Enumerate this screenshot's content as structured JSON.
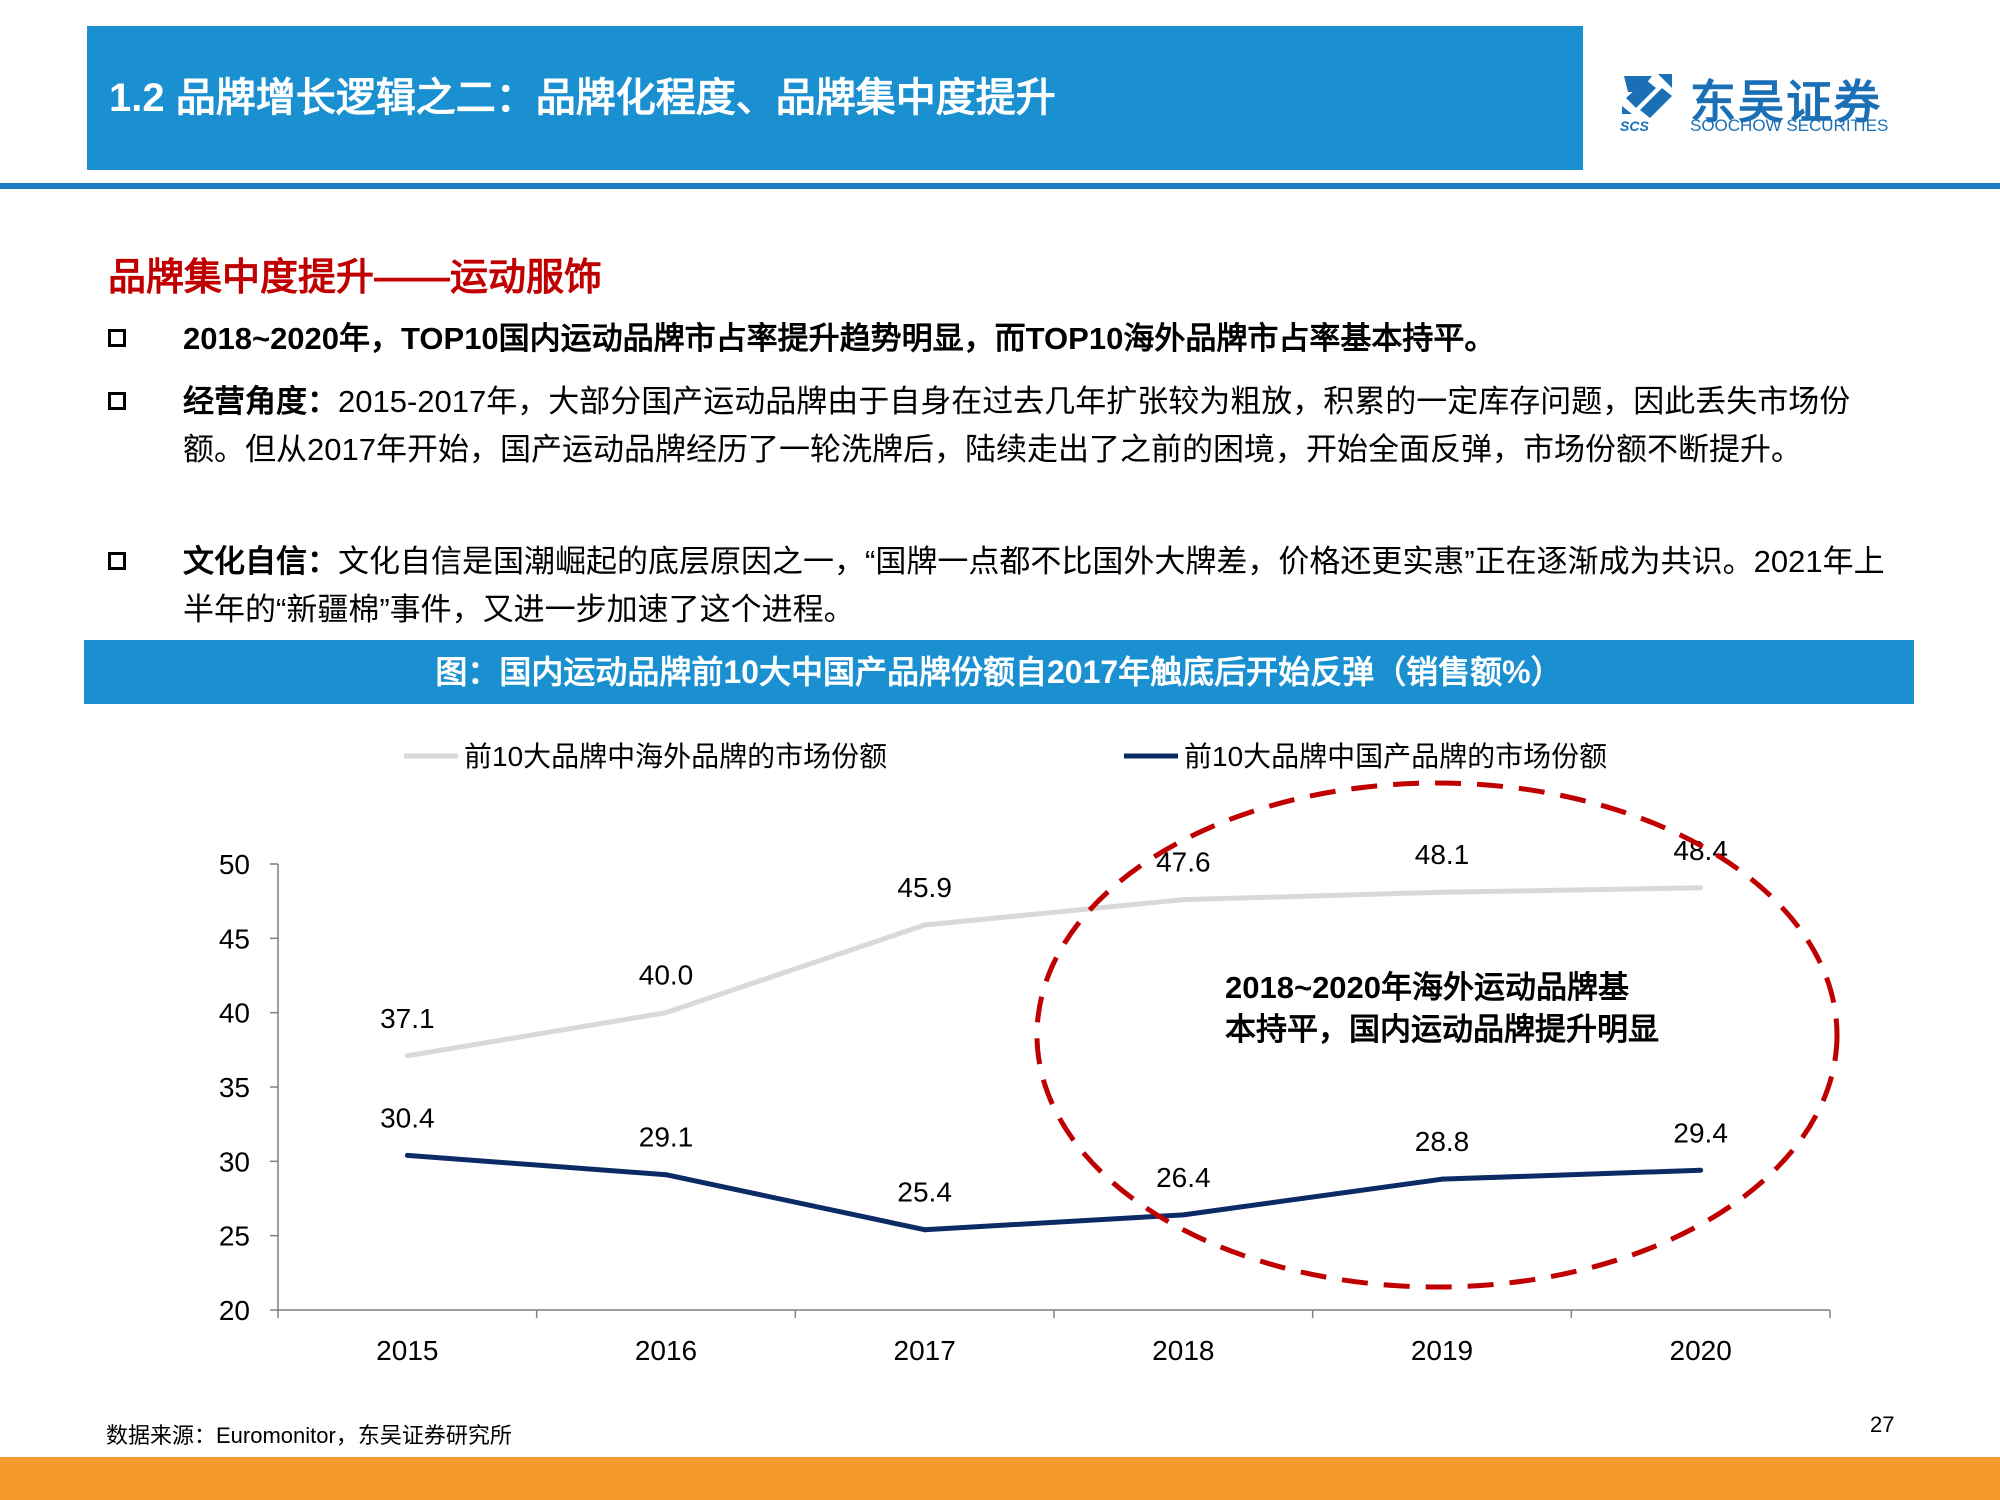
{
  "header": {
    "title": "1.2 品牌增长逻辑之二：品牌化程度、品牌集中度提升"
  },
  "logo": {
    "cn": "东吴证券",
    "en": "SOOCHOW SECURITIES",
    "mark": "SCS",
    "icon": "soochow-logo-icon"
  },
  "section_title": "品牌集中度提升——运动服饰",
  "bullets": [
    {
      "lead": "",
      "text": "2018~2020年，TOP10国内运动品牌市占率提升趋势明显，而TOP10海外品牌市占率基本持平。"
    },
    {
      "lead": "经营角度：",
      "text": "2015-2017年，大部分国产运动品牌由于自身在过去几年扩张较为粗放，积累的一定库存问题，因此丢失市场份额。但从2017年开始，国产运动品牌经历了一轮洗牌后，陆续走出了之前的困境，开始全面反弹，市场份额不断提升。"
    },
    {
      "lead": "文化自信：",
      "text": "文化自信是国潮崛起的底层原因之一，“国牌一点都不比国外大牌差，价格还更实惠”正在逐渐成为共识。2021年上半年的“新疆棉”事件，又进一步加速了这个进程。"
    }
  ],
  "figure_title": "图：国内运动品牌前10大中国产品牌份额自2017年触底后开始反弹（销售额%）",
  "chart_data": {
    "type": "line",
    "x": [
      "2015",
      "2016",
      "2017",
      "2018",
      "2019",
      "2020"
    ],
    "series": [
      {
        "name": "前10大品牌中海外品牌的市场份额",
        "values": [
          37.1,
          40.0,
          45.9,
          47.6,
          48.1,
          48.4
        ],
        "labels": [
          "37.1",
          "40.0",
          "45.9",
          "47.6",
          "48.1",
          "48.4"
        ],
        "color": "#d9d9d9"
      },
      {
        "name": "前10大品牌中国产品牌的市场份额",
        "values": [
          30.4,
          29.1,
          25.4,
          26.4,
          28.8,
          29.4
        ],
        "labels": [
          "30.4",
          "29.1",
          "25.4",
          "26.4",
          "28.8",
          "29.4"
        ],
        "color": "#0c2a66"
      }
    ],
    "ylim": [
      20,
      50
    ],
    "yticks": [
      "20",
      "25",
      "30",
      "35",
      "40",
      "45",
      "50"
    ],
    "legend_position": "top",
    "grid": false,
    "annotation": {
      "lines": [
        "2018~2020年海外运动品牌基",
        "本持平，国内运动品牌提升明显"
      ],
      "highlight_color": "#c00000"
    }
  },
  "source": "数据来源：Euromonitor，东吴证券研究所",
  "page_number": "27"
}
